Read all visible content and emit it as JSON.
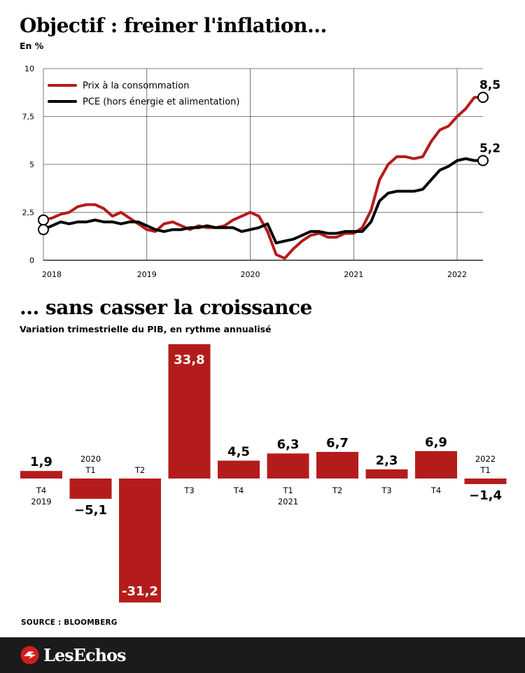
{
  "colors": {
    "red": "#b41c1c",
    "black": "#000000",
    "footer_bg": "#1b1b1b"
  },
  "brand": "LesEchos",
  "source": "SOURCE : BLOOMBERG",
  "chart_data": [
    {
      "type": "line",
      "title": "Objectif : freiner l'inflation...",
      "subtitle": "En %",
      "ylim": [
        0,
        10
      ],
      "yticks": [
        "10",
        "7,5",
        "5",
        "2,5",
        "0"
      ],
      "ytick_values": [
        10,
        7.5,
        5,
        2.5,
        0
      ],
      "xticks": [
        "2018",
        "2019",
        "2020",
        "2021",
        "2022"
      ],
      "xtick_values": [
        2018,
        2019,
        2020,
        2021,
        2022
      ],
      "xlim": [
        2018,
        2022.25
      ],
      "grid": true,
      "legend_position": "top-left",
      "series": [
        {
          "name": "Prix à la consommation",
          "color": "#b41c1c",
          "end_label": "8,5",
          "x": [
            2018.0,
            2018.083,
            2018.167,
            2018.25,
            2018.333,
            2018.417,
            2018.5,
            2018.583,
            2018.667,
            2018.75,
            2018.833,
            2018.917,
            2019.0,
            2019.083,
            2019.167,
            2019.25,
            2019.333,
            2019.417,
            2019.5,
            2019.583,
            2019.667,
            2019.75,
            2019.833,
            2019.917,
            2020.0,
            2020.083,
            2020.167,
            2020.25,
            2020.333,
            2020.417,
            2020.5,
            2020.583,
            2020.667,
            2020.75,
            2020.833,
            2020.917,
            2021.0,
            2021.083,
            2021.167,
            2021.25,
            2021.333,
            2021.417,
            2021.5,
            2021.583,
            2021.667,
            2021.75,
            2021.833,
            2021.917,
            2022.0,
            2022.083,
            2022.167,
            2022.25
          ],
          "values": [
            2.1,
            2.2,
            2.4,
            2.5,
            2.8,
            2.9,
            2.9,
            2.7,
            2.3,
            2.5,
            2.2,
            1.9,
            1.6,
            1.5,
            1.9,
            2.0,
            1.8,
            1.6,
            1.8,
            1.7,
            1.7,
            1.8,
            2.1,
            2.3,
            2.5,
            2.3,
            1.5,
            0.3,
            0.1,
            0.6,
            1.0,
            1.3,
            1.4,
            1.2,
            1.2,
            1.4,
            1.4,
            1.7,
            2.6,
            4.2,
            5.0,
            5.4,
            5.4,
            5.3,
            5.4,
            6.2,
            6.8,
            7.0,
            7.5,
            7.9,
            8.5,
            8.5
          ]
        },
        {
          "name": "PCE (hors énergie et alimentation)",
          "color": "#000000",
          "end_label": "5,2",
          "x": [
            2018.0,
            2018.083,
            2018.167,
            2018.25,
            2018.333,
            2018.417,
            2018.5,
            2018.583,
            2018.667,
            2018.75,
            2018.833,
            2018.917,
            2019.0,
            2019.083,
            2019.167,
            2019.25,
            2019.333,
            2019.417,
            2019.5,
            2019.583,
            2019.667,
            2019.75,
            2019.833,
            2019.917,
            2020.0,
            2020.083,
            2020.167,
            2020.25,
            2020.333,
            2020.417,
            2020.5,
            2020.583,
            2020.667,
            2020.75,
            2020.833,
            2020.917,
            2021.0,
            2021.083,
            2021.167,
            2021.25,
            2021.333,
            2021.417,
            2021.5,
            2021.583,
            2021.667,
            2021.75,
            2021.833,
            2021.917,
            2022.0,
            2022.083,
            2022.167,
            2022.25
          ],
          "values": [
            1.6,
            1.8,
            2.0,
            1.9,
            2.0,
            2.0,
            2.1,
            2.0,
            2.0,
            1.9,
            2.0,
            2.0,
            1.8,
            1.6,
            1.5,
            1.6,
            1.6,
            1.7,
            1.7,
            1.8,
            1.7,
            1.7,
            1.7,
            1.5,
            1.6,
            1.7,
            1.9,
            0.9,
            1.0,
            1.1,
            1.3,
            1.5,
            1.5,
            1.4,
            1.4,
            1.5,
            1.5,
            1.5,
            2.0,
            3.1,
            3.5,
            3.6,
            3.6,
            3.6,
            3.7,
            4.2,
            4.7,
            4.9,
            5.2,
            5.3,
            5.2,
            5.2
          ]
        }
      ]
    },
    {
      "type": "bar",
      "title": "... sans casser la croissance",
      "subtitle": "Variation trimestrielle du PIB, en rythme annualisé",
      "categories": [
        [
          "T4",
          "2019"
        ],
        [
          "2020",
          "T1"
        ],
        [
          "T2"
        ],
        [
          "T3"
        ],
        [
          "T4"
        ],
        [
          "T1",
          "2021"
        ],
        [
          "T2"
        ],
        [
          "T3"
        ],
        [
          "T4"
        ],
        [
          "2022",
          "T1"
        ]
      ],
      "values": [
        1.9,
        -5.1,
        -31.2,
        33.8,
        4.5,
        6.3,
        6.7,
        2.3,
        6.9,
        -1.4
      ],
      "value_labels": [
        "1,9",
        "−5,1",
        "-31,2",
        "33,8",
        "4,5",
        "6,3",
        "6,7",
        "2,3",
        "6,9",
        "−1,4"
      ],
      "color": "#b41c1c"
    }
  ]
}
